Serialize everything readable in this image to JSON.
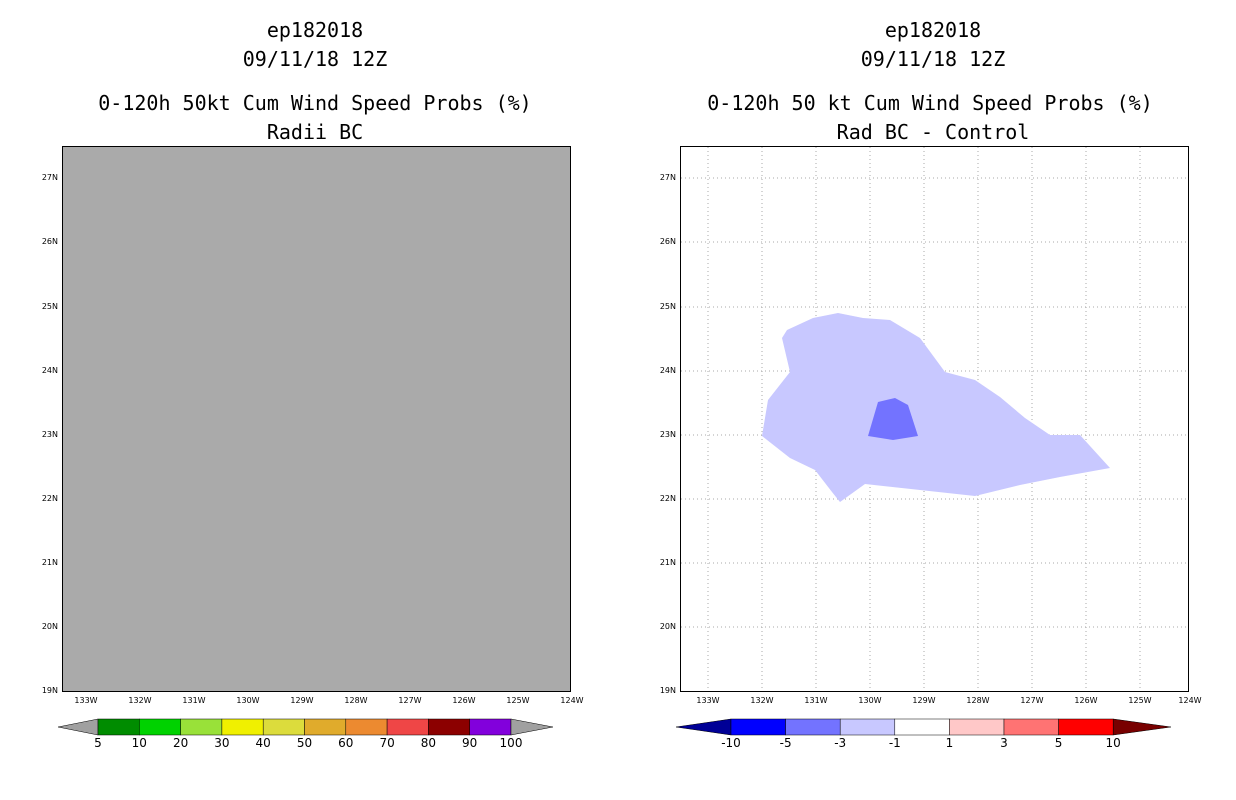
{
  "left_panel": {
    "storm_id": "ep182018",
    "date": "09/11/18 12Z",
    "title": "0-120h 50kt Cum Wind Speed Probs (%)",
    "subtitle": "Radii BC",
    "fill_color": "#aaaaaa",
    "lat_labels": [
      "27N",
      "26N",
      "25N",
      "24N",
      "23N",
      "22N",
      "21N",
      "20N",
      "19N"
    ],
    "lon_labels": [
      "133W",
      "132W",
      "131W",
      "130W",
      "129W",
      "128W",
      "127W",
      "126W",
      "125W",
      "124W"
    ],
    "colorbar": {
      "labels": [
        "5",
        "10",
        "20",
        "30",
        "40",
        "50",
        "60",
        "70",
        "80",
        "90",
        "100"
      ],
      "colors": [
        "#008c00",
        "#00d200",
        "#99e139",
        "#f0f000",
        "#dcdc3c",
        "#e0ab2c",
        "#ec8a30",
        "#ef4646",
        "#8c0000",
        "#8200dc"
      ],
      "end_color": "#a0a0a0"
    }
  },
  "right_panel": {
    "storm_id": "ep182018",
    "date": "09/11/18 12Z",
    "title": "0-120h 50 kt Cum Wind Speed Probs (%)",
    "subtitle": "Rad BC - Control",
    "lat_labels": [
      "27N",
      "26N",
      "25N",
      "24N",
      "23N",
      "22N",
      "21N",
      "20N",
      "19N"
    ],
    "lon_labels": [
      "133W",
      "132W",
      "131W",
      "130W",
      "129W",
      "128W",
      "127W",
      "126W",
      "125W",
      "124W"
    ],
    "light_fill": "#c8c8ff",
    "dark_fill": "#7373ff",
    "colorbar": {
      "labels": [
        "-10",
        "-5",
        "-3",
        "-1",
        "1",
        "3",
        "5",
        "10"
      ],
      "colors": [
        "#0000ff",
        "#7373ff",
        "#c8c8ff",
        "#ffffff",
        "#ffc8c8",
        "#ff7373",
        "#ff0000"
      ],
      "low_end_color": "#000096",
      "high_end_color": "#780000"
    }
  }
}
